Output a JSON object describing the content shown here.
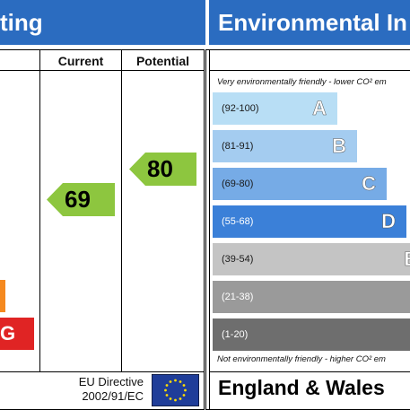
{
  "left_panel": {
    "title_fragment": "ting",
    "col_current": "Current",
    "col_potential": "Potential",
    "current_rating": "69",
    "potential_rating": "80",
    "band_f_letter": "",
    "band_g_letter": "G",
    "eu_directive_line1": "EU Directive",
    "eu_directive_line2": "2002/91/EC",
    "colors": {
      "header": "#2b6cc0",
      "rating_green": "#8dc63f",
      "band_f": "#f5891f",
      "band_g": "#e02424"
    }
  },
  "right_panel": {
    "title": "Environmental In",
    "top_note": "Very environmentally friendly - lower CO² em",
    "bottom_note": "Not environmentally friendly - higher CO² em",
    "footer": "England & Wales",
    "bands": [
      {
        "range": "(92-100)",
        "letter": "A",
        "color": "#b8def5"
      },
      {
        "range": "(81-91)",
        "letter": "B",
        "color": "#a4ccf0"
      },
      {
        "range": "(69-80)",
        "letter": "C",
        "color": "#76abe6"
      },
      {
        "range": "(55-68)",
        "letter": "D",
        "color": "#3b80d8"
      },
      {
        "range": "(39-54)",
        "letter": "E",
        "color": "#c4c4c4"
      },
      {
        "range": "(21-38)",
        "letter": "",
        "color": "#9a9a9a"
      },
      {
        "range": "(1-20)",
        "letter": "",
        "color": "#6e6e6e"
      }
    ]
  }
}
